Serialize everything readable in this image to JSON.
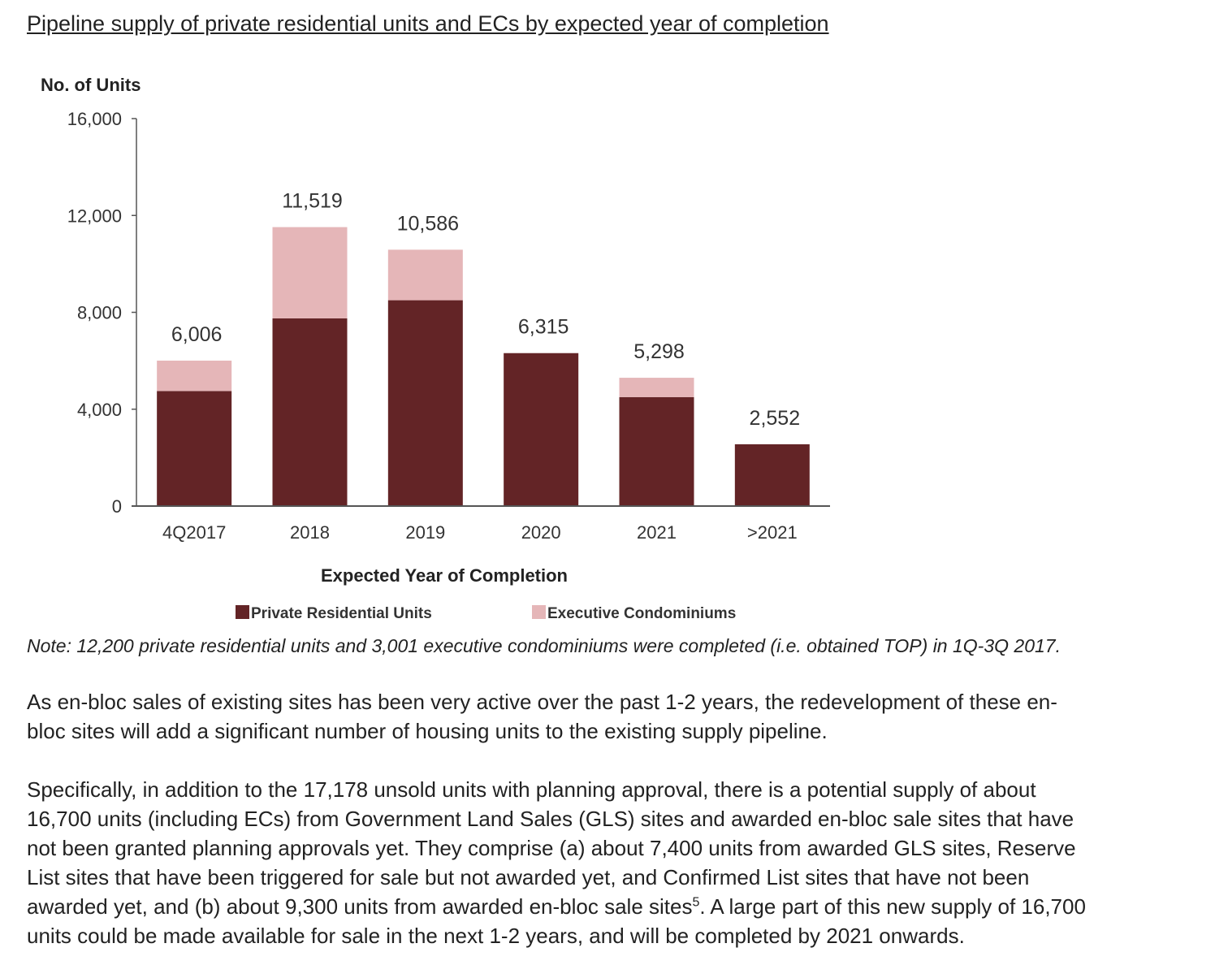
{
  "heading": "Pipeline supply of private residential units and ECs by expected year of completion",
  "chart_data": {
    "type": "bar",
    "stacked": true,
    "ylabel": "No. of Units",
    "xlabel": "Expected Year of Completion",
    "ylim": [
      0,
      16000
    ],
    "yticks": [
      0,
      4000,
      8000,
      12000,
      16000
    ],
    "ytick_labels": [
      "0",
      "4,000",
      "8,000",
      "12,000",
      "16,000"
    ],
    "categories": [
      "4Q2017",
      "2018",
      "2019",
      "2020",
      "2021",
      ">2021"
    ],
    "totals": [
      6006,
      11519,
      10586,
      6315,
      5298,
      2552
    ],
    "total_labels": [
      "6,006",
      "11,519",
      "10,586",
      "6,315",
      "5,298",
      "2,552"
    ],
    "series": [
      {
        "name": "Private Residential Units",
        "color": "#632426",
        "values": [
          4750,
          7750,
          8500,
          6315,
          4500,
          2552
        ]
      },
      {
        "name": "Executive Condominiums",
        "color": "#e5b6b8",
        "values": [
          1256,
          3769,
          2086,
          0,
          798,
          0
        ]
      }
    ],
    "legend_position": "bottom",
    "grid": false
  },
  "note": "Note: 12,200 private residential units and 3,001 executive condominiums were completed (i.e. obtained TOP) in 1Q-3Q 2017.",
  "paragraph1": "As en-bloc sales of existing sites has been very active over the past 1-2 years, the redevelopment of these en-bloc sites will add a significant number of housing units to the existing supply pipeline.",
  "paragraph2": {
    "before_ref": "Specifically, in addition to the 17,178 unsold units with planning approval, there is a potential supply of about 16,700 units (including ECs) from Government Land Sales (GLS) sites and awarded en-bloc sale sites that have not been granted planning approvals yet. They comprise (a) about 7,400 units from awarded GLS sites, Reserve List sites that have been triggered for sale but not awarded yet, and Confirmed List sites that have not been awarded yet, and (b) about 9,300 units from awarded en-bloc sale sites",
    "footnote_ref": "5",
    "after_ref": ". A large part of this new supply of 16,700 units could be made available for sale in the next 1-2 years, and will be completed by 2021 onwards."
  }
}
